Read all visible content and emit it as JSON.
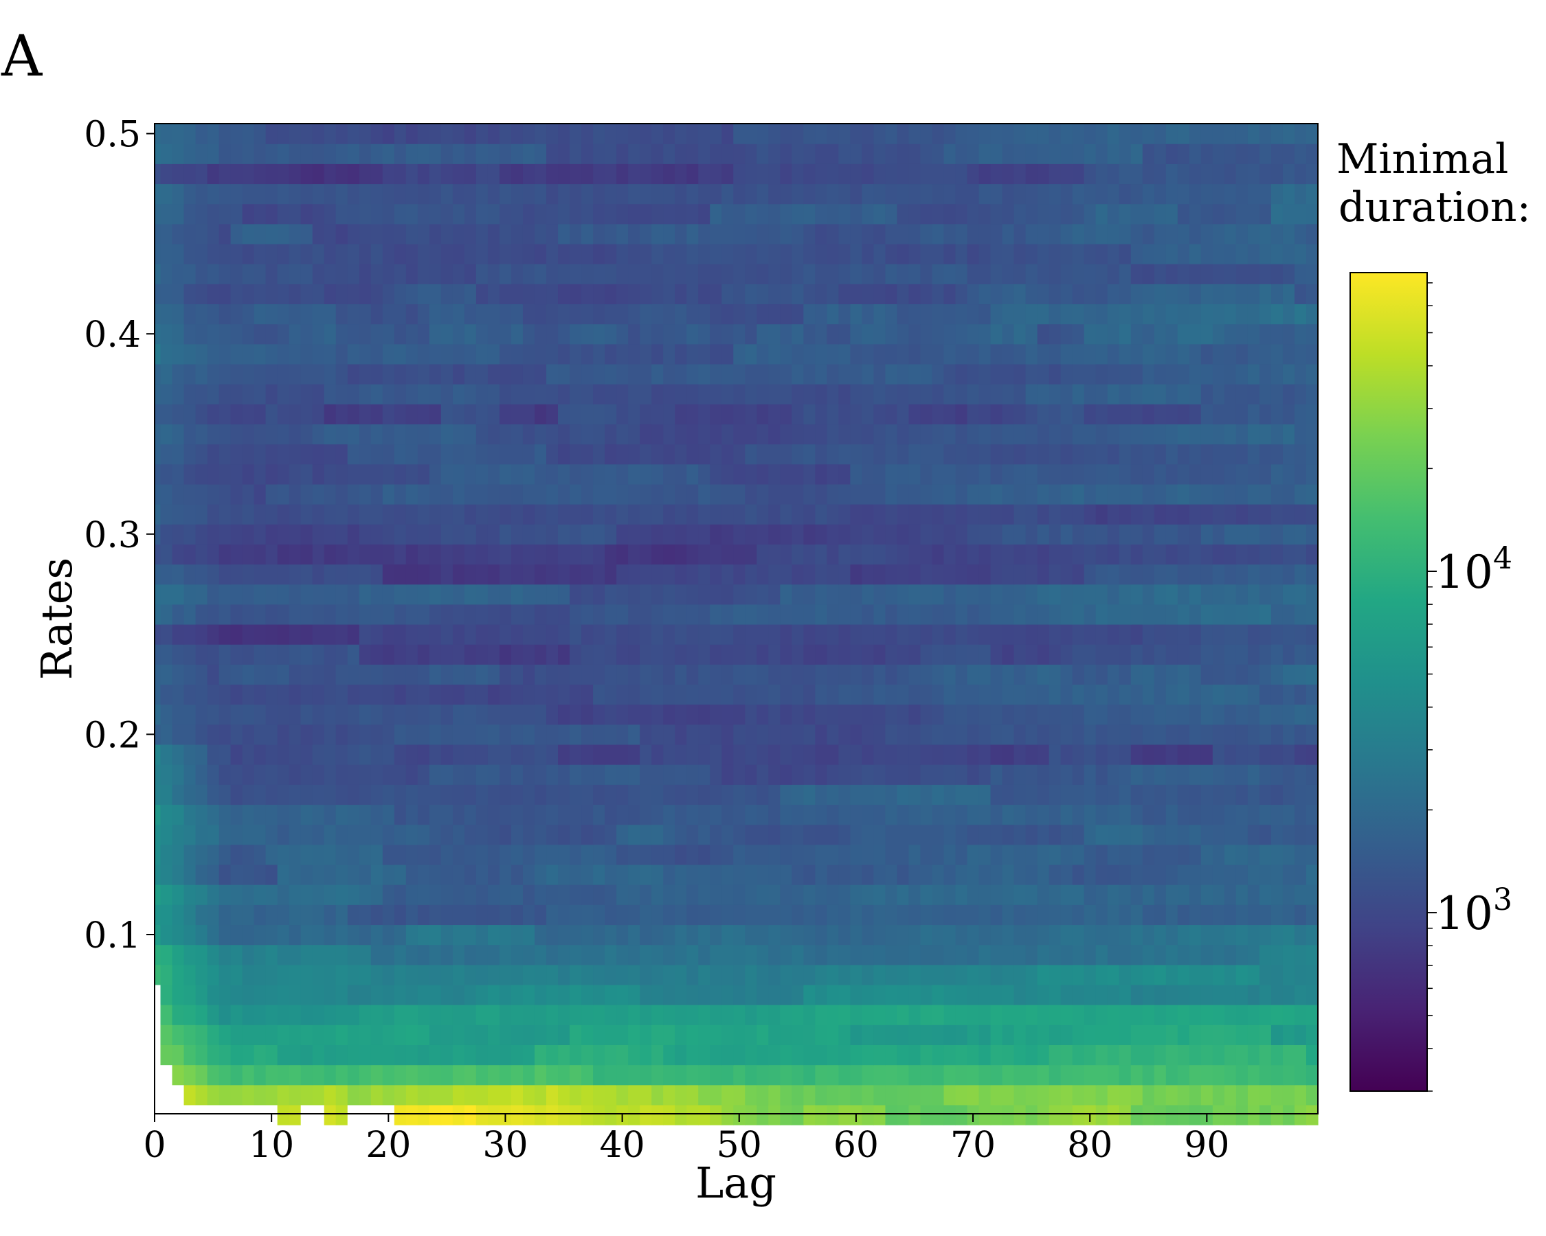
{
  "panel_label": "A",
  "chart_data": {
    "type": "heatmap",
    "title": "",
    "xlabel": "Lag",
    "ylabel": "Rates",
    "x": {
      "min": 0,
      "max": 99,
      "step": 1,
      "ticks": [
        0,
        10,
        20,
        30,
        40,
        50,
        60,
        70,
        80,
        90
      ]
    },
    "y": {
      "min": 0.01,
      "max": 0.5,
      "step": 0.01,
      "ticks": [
        "0.1",
        "0.2",
        "0.3",
        "0.4",
        "0.5"
      ]
    },
    "colorbar": {
      "title_lines": [
        "Minimal",
        "duration:"
      ],
      "scale": "log",
      "colormap": "viridis",
      "range": [
        300,
        75000
      ],
      "ticks": [
        {
          "base": "10",
          "exp": "3",
          "value": 1000
        },
        {
          "base": "10",
          "exp": "4",
          "value": 10000
        }
      ]
    },
    "missing_cells": "white",
    "value_summary": {
      "high_values_region": "rates below 0.1 and lag below 30 (values up to about 70000)",
      "low_values_region": "rates above 0.2 (values about 400 to 2000)",
      "missing_region": "rates 0.01 to 0.07 with lag 0 to 2, and rate 0.01 with lag below 21"
    }
  }
}
